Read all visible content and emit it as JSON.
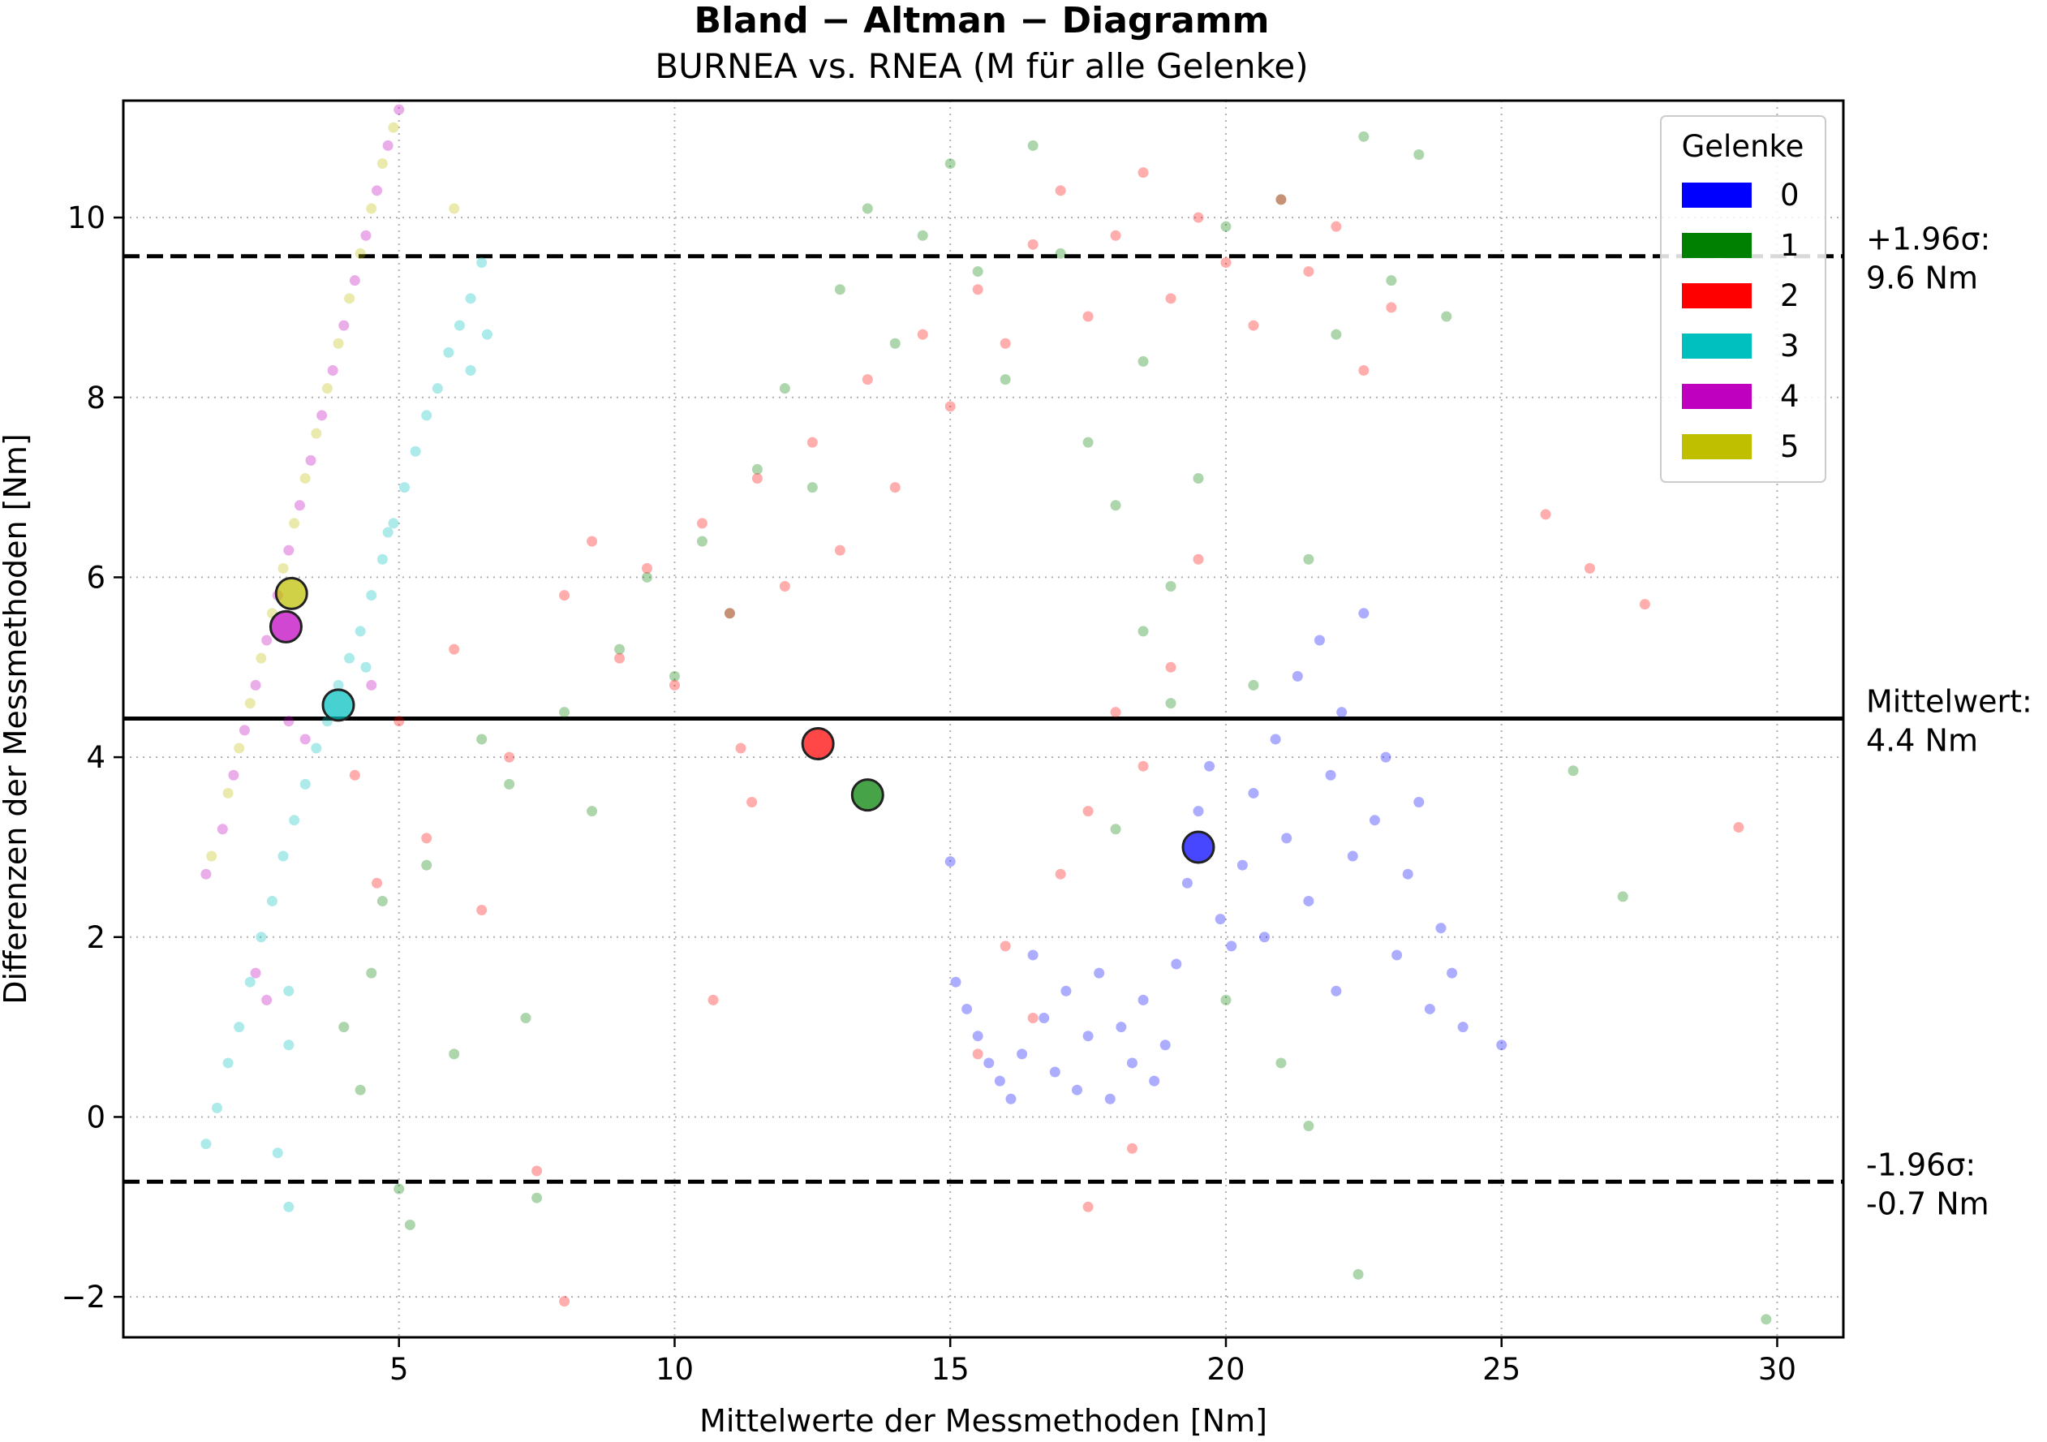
{
  "chart_data": {
    "type": "scatter",
    "title": "Bland − Altman − Diagramm",
    "subtitle": "BURNEA vs. RNEA (M für alle Gelenke)",
    "xlabel": "Mittelwerte der Messmethoden [Nm]",
    "ylabel": "Differenzen der Messmethoden [Nm]",
    "xlim": [
      0,
      31.2
    ],
    "ylim": [
      -2.45,
      11.3
    ],
    "xticks": [
      5,
      10,
      15,
      20,
      25,
      30
    ],
    "yticks": [
      -2,
      0,
      2,
      4,
      6,
      8,
      10
    ],
    "ytick_labels": [
      "−2",
      "0",
      "2",
      "4",
      "6",
      "8",
      "10"
    ],
    "grid": true,
    "legend": {
      "title": "Gelenke",
      "placement": "top-right",
      "entries": [
        "0",
        "1",
        "2",
        "3",
        "4",
        "5"
      ]
    },
    "series_colors": [
      "#0000ff",
      "#008000",
      "#ff0000",
      "#00bfbf",
      "#bf00bf",
      "#bfbf00"
    ],
    "reference_lines": [
      {
        "label": "+1.96σ:",
        "value_label": "9.6 Nm",
        "value": 9.57,
        "style": "dashed"
      },
      {
        "label": "Mittelwert:",
        "value_label": "4.4 Nm",
        "value": 4.43,
        "style": "solid"
      },
      {
        "label": "-1.96σ:",
        "value_label": "-0.7 Nm",
        "value": -0.72,
        "style": "dashed"
      }
    ],
    "series": [
      {
        "name": "0",
        "mean_point": {
          "x": 19.5,
          "y": 3.0
        },
        "points": [
          [
            15.0,
            2.84
          ],
          [
            15.1,
            1.5
          ],
          [
            15.3,
            1.2
          ],
          [
            15.5,
            0.9
          ],
          [
            15.7,
            0.6
          ],
          [
            15.9,
            0.4
          ],
          [
            16.1,
            0.2
          ],
          [
            16.3,
            0.7
          ],
          [
            16.5,
            1.8
          ],
          [
            16.7,
            1.1
          ],
          [
            16.9,
            0.5
          ],
          [
            17.1,
            1.4
          ],
          [
            17.3,
            0.3
          ],
          [
            17.5,
            0.9
          ],
          [
            17.7,
            1.6
          ],
          [
            17.9,
            0.2
          ],
          [
            18.1,
            1.0
          ],
          [
            18.3,
            0.6
          ],
          [
            18.5,
            1.3
          ],
          [
            18.7,
            0.4
          ],
          [
            18.9,
            0.8
          ],
          [
            19.1,
            1.7
          ],
          [
            19.3,
            2.6
          ],
          [
            19.5,
            3.4
          ],
          [
            19.7,
            3.9
          ],
          [
            19.9,
            2.2
          ],
          [
            20.1,
            1.9
          ],
          [
            20.3,
            2.8
          ],
          [
            20.5,
            3.6
          ],
          [
            20.7,
            2.0
          ],
          [
            20.9,
            4.2
          ],
          [
            21.1,
            3.1
          ],
          [
            21.3,
            4.9
          ],
          [
            21.5,
            2.4
          ],
          [
            21.7,
            5.3
          ],
          [
            21.9,
            3.8
          ],
          [
            22.1,
            4.5
          ],
          [
            22.3,
            2.9
          ],
          [
            22.5,
            5.6
          ],
          [
            22.7,
            3.3
          ],
          [
            22.9,
            4.0
          ],
          [
            23.1,
            1.8
          ],
          [
            23.3,
            2.7
          ],
          [
            23.5,
            3.5
          ],
          [
            23.7,
            1.2
          ],
          [
            23.9,
            2.1
          ],
          [
            24.1,
            1.6
          ],
          [
            24.3,
            1.0
          ],
          [
            25.0,
            0.8
          ],
          [
            22.0,
            1.4
          ]
        ]
      },
      {
        "name": "1",
        "mean_point": {
          "x": 13.5,
          "y": 3.58
        },
        "points": [
          [
            4.0,
            1.0
          ],
          [
            4.3,
            0.3
          ],
          [
            4.5,
            1.6
          ],
          [
            4.7,
            2.4
          ],
          [
            5.0,
            -0.8
          ],
          [
            5.2,
            -1.2
          ],
          [
            5.5,
            2.8
          ],
          [
            6.0,
            0.7
          ],
          [
            6.5,
            4.2
          ],
          [
            7.0,
            3.7
          ],
          [
            7.3,
            1.1
          ],
          [
            7.5,
            -0.9
          ],
          [
            8.0,
            4.5
          ],
          [
            8.5,
            3.4
          ],
          [
            9.0,
            5.2
          ],
          [
            9.5,
            6.0
          ],
          [
            10.0,
            4.9
          ],
          [
            10.5,
            6.4
          ],
          [
            11.0,
            5.6
          ],
          [
            11.5,
            7.2
          ],
          [
            12.0,
            8.1
          ],
          [
            12.5,
            7.0
          ],
          [
            13.0,
            9.2
          ],
          [
            13.5,
            10.1
          ],
          [
            14.0,
            8.6
          ],
          [
            14.5,
            9.8
          ],
          [
            15.0,
            10.6
          ],
          [
            15.5,
            9.4
          ],
          [
            16.0,
            8.2
          ],
          [
            16.5,
            10.8
          ],
          [
            17.0,
            9.6
          ],
          [
            17.5,
            7.5
          ],
          [
            18.0,
            6.8
          ],
          [
            18.5,
            8.4
          ],
          [
            19.0,
            5.9
          ],
          [
            19.5,
            7.1
          ],
          [
            20.0,
            9.9
          ],
          [
            20.5,
            4.8
          ],
          [
            21.0,
            10.2
          ],
          [
            21.5,
            6.2
          ],
          [
            22.0,
            8.7
          ],
          [
            22.5,
            10.9
          ],
          [
            23.0,
            9.3
          ],
          [
            23.5,
            10.7
          ],
          [
            24.0,
            8.9
          ],
          [
            20.0,
            1.3
          ],
          [
            21.0,
            0.6
          ],
          [
            21.5,
            -0.1
          ],
          [
            22.4,
            -1.75
          ],
          [
            26.3,
            3.85
          ],
          [
            27.2,
            2.45
          ],
          [
            29.8,
            -2.25
          ],
          [
            18.0,
            3.2
          ],
          [
            19.0,
            4.6
          ],
          [
            18.5,
            5.4
          ]
        ]
      },
      {
        "name": "2",
        "mean_point": {
          "x": 12.6,
          "y": 4.15
        },
        "points": [
          [
            4.2,
            3.8
          ],
          [
            4.6,
            2.6
          ],
          [
            5.0,
            4.4
          ],
          [
            5.5,
            3.1
          ],
          [
            6.0,
            5.2
          ],
          [
            6.5,
            2.3
          ],
          [
            7.0,
            4.0
          ],
          [
            7.5,
            -0.6
          ],
          [
            8.0,
            -2.05
          ],
          [
            8.0,
            5.8
          ],
          [
            8.5,
            6.4
          ],
          [
            9.0,
            5.1
          ],
          [
            9.5,
            6.1
          ],
          [
            10.0,
            4.8
          ],
          [
            10.5,
            6.6
          ],
          [
            11.0,
            5.6
          ],
          [
            11.5,
            7.1
          ],
          [
            12.0,
            5.9
          ],
          [
            12.5,
            7.5
          ],
          [
            13.0,
            6.3
          ],
          [
            13.5,
            8.2
          ],
          [
            14.0,
            7.0
          ],
          [
            14.5,
            8.7
          ],
          [
            15.0,
            7.9
          ],
          [
            15.5,
            9.2
          ],
          [
            16.0,
            8.6
          ],
          [
            16.5,
            9.7
          ],
          [
            17.0,
            10.3
          ],
          [
            17.5,
            8.9
          ],
          [
            18.0,
            9.8
          ],
          [
            18.5,
            10.5
          ],
          [
            19.0,
            9.1
          ],
          [
            19.5,
            10.0
          ],
          [
            20.0,
            9.5
          ],
          [
            20.5,
            8.8
          ],
          [
            21.0,
            10.2
          ],
          [
            21.5,
            9.4
          ],
          [
            22.0,
            9.9
          ],
          [
            22.5,
            8.3
          ],
          [
            23.0,
            9.0
          ],
          [
            15.5,
            0.7
          ],
          [
            16.0,
            1.9
          ],
          [
            16.5,
            1.1
          ],
          [
            17.0,
            2.7
          ],
          [
            17.5,
            3.4
          ],
          [
            18.0,
            4.5
          ],
          [
            18.5,
            3.9
          ],
          [
            19.0,
            5.0
          ],
          [
            19.5,
            6.2
          ],
          [
            17.5,
            -1.0
          ],
          [
            18.3,
            -0.35
          ],
          [
            25.8,
            6.7
          ],
          [
            26.6,
            6.1
          ],
          [
            27.6,
            5.7
          ],
          [
            29.3,
            3.22
          ],
          [
            10.7,
            1.3
          ],
          [
            11.4,
            3.5
          ],
          [
            11.2,
            4.1
          ]
        ]
      },
      {
        "name": "3",
        "mean_point": {
          "x": 3.9,
          "y": 4.58
        },
        "points": [
          [
            1.5,
            -0.3
          ],
          [
            1.7,
            0.1
          ],
          [
            1.9,
            0.6
          ],
          [
            2.1,
            1.0
          ],
          [
            2.3,
            1.5
          ],
          [
            2.5,
            2.0
          ],
          [
            2.7,
            2.4
          ],
          [
            2.9,
            2.9
          ],
          [
            3.1,
            3.3
          ],
          [
            3.3,
            3.7
          ],
          [
            3.5,
            4.1
          ],
          [
            3.7,
            4.4
          ],
          [
            3.9,
            4.8
          ],
          [
            4.1,
            5.1
          ],
          [
            4.3,
            5.4
          ],
          [
            4.5,
            5.8
          ],
          [
            4.7,
            6.2
          ],
          [
            4.9,
            6.6
          ],
          [
            5.1,
            7.0
          ],
          [
            5.3,
            7.4
          ],
          [
            5.5,
            7.8
          ],
          [
            5.7,
            8.1
          ],
          [
            5.9,
            8.5
          ],
          [
            6.1,
            8.8
          ],
          [
            6.3,
            9.1
          ],
          [
            6.5,
            9.5
          ],
          [
            6.6,
            8.7
          ],
          [
            3.0,
            -1.0
          ],
          [
            2.8,
            -0.4
          ],
          [
            3.0,
            0.8
          ],
          [
            3.0,
            1.4
          ],
          [
            4.4,
            5.0
          ],
          [
            4.8,
            6.5
          ],
          [
            6.3,
            8.3
          ]
        ]
      },
      {
        "name": "4",
        "mean_point": {
          "x": 2.95,
          "y": 5.45
        },
        "points": [
          [
            1.5,
            2.7
          ],
          [
            1.8,
            3.2
          ],
          [
            2.0,
            3.8
          ],
          [
            2.2,
            4.3
          ],
          [
            2.4,
            4.8
          ],
          [
            2.6,
            5.3
          ],
          [
            2.8,
            5.8
          ],
          [
            3.0,
            6.3
          ],
          [
            3.2,
            6.8
          ],
          [
            3.4,
            7.3
          ],
          [
            3.6,
            7.8
          ],
          [
            3.8,
            8.3
          ],
          [
            4.0,
            8.8
          ],
          [
            4.2,
            9.3
          ],
          [
            4.4,
            9.8
          ],
          [
            4.6,
            10.3
          ],
          [
            4.8,
            10.8
          ],
          [
            5.0,
            11.2
          ],
          [
            2.4,
            1.6
          ],
          [
            2.6,
            1.3
          ],
          [
            3.0,
            4.4
          ],
          [
            3.3,
            4.2
          ],
          [
            4.5,
            4.8
          ]
        ]
      },
      {
        "name": "5",
        "mean_point": {
          "x": 3.05,
          "y": 5.82
        },
        "points": [
          [
            1.6,
            2.9
          ],
          [
            1.9,
            3.6
          ],
          [
            2.1,
            4.1
          ],
          [
            2.3,
            4.6
          ],
          [
            2.5,
            5.1
          ],
          [
            2.7,
            5.6
          ],
          [
            2.9,
            6.1
          ],
          [
            3.1,
            6.6
          ],
          [
            3.3,
            7.1
          ],
          [
            3.5,
            7.6
          ],
          [
            3.7,
            8.1
          ],
          [
            3.9,
            8.6
          ],
          [
            4.1,
            9.1
          ],
          [
            4.3,
            9.6
          ],
          [
            4.5,
            10.1
          ],
          [
            4.7,
            10.6
          ],
          [
            4.9,
            11.0
          ],
          [
            6.0,
            10.1
          ]
        ]
      }
    ]
  }
}
